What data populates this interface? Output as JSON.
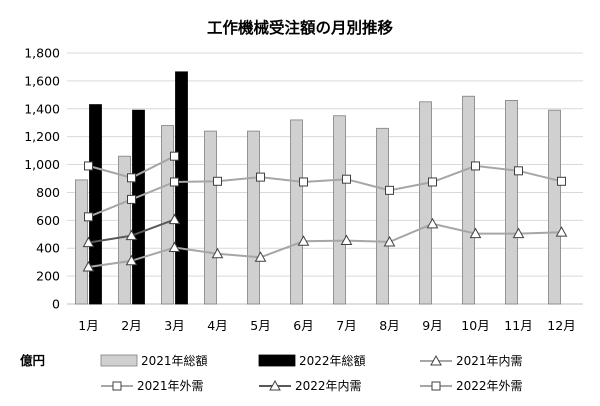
{
  "chart_data": {
    "type": "bar",
    "title": "工作機械受注額の月別推移",
    "unit": "億円",
    "categories": [
      "1月",
      "2月",
      "3月",
      "4月",
      "5月",
      "6月",
      "7月",
      "8月",
      "9月",
      "10月",
      "11月",
      "12月"
    ],
    "ylim": [
      0,
      1800
    ],
    "yticks": [
      0,
      200,
      400,
      600,
      800,
      1000,
      1200,
      1400,
      1600,
      1800
    ],
    "ytick_labels": [
      "0",
      "200",
      "400",
      "600",
      "800",
      "1,000",
      "1,200",
      "1,400",
      "1,600",
      "1,800"
    ],
    "grid": true,
    "legend_position": "bottom",
    "bar_series": [
      {
        "name": "2021年総額",
        "color": "#d0d0d0",
        "values": [
          890,
          1060,
          1280,
          1240,
          1240,
          1320,
          1350,
          1260,
          1450,
          1490,
          1460,
          1390
        ]
      },
      {
        "name": "2022年総額",
        "color": "#000000",
        "values": [
          1430,
          1390,
          1665,
          null,
          null,
          null,
          null,
          null,
          null,
          null,
          null,
          null
        ]
      }
    ],
    "line_series": [
      {
        "name": "2021年内需",
        "marker": "triangle",
        "color": "#a6a6a6",
        "values": [
          265,
          310,
          405,
          360,
          335,
          450,
          455,
          445,
          575,
          505,
          505,
          515
        ]
      },
      {
        "name": "2021年外需",
        "marker": "square",
        "color": "#a6a6a6",
        "values": [
          625,
          750,
          875,
          880,
          910,
          875,
          895,
          815,
          875,
          990,
          955,
          880
        ]
      },
      {
        "name": "2022年内需",
        "marker": "triangle",
        "color": "#595959",
        "values": [
          440,
          490,
          605,
          null,
          null,
          null,
          null,
          null,
          null,
          null,
          null,
          null
        ]
      },
      {
        "name": "2022年外需",
        "marker": "square",
        "color": "#a6a6a6",
        "values": [
          990,
          905,
          1060,
          null,
          null,
          null,
          null,
          null,
          null,
          null,
          null,
          null
        ]
      }
    ]
  }
}
